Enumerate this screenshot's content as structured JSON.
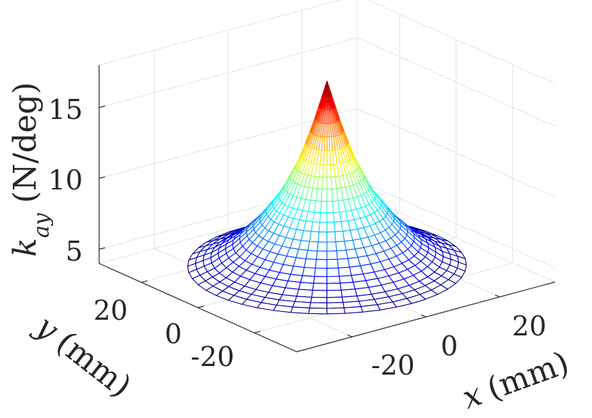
{
  "chart_data": {
    "type": "surface",
    "surface_style": "mesh",
    "colormap": [
      "#00008f",
      "#0000ff",
      "#00ffff",
      "#ffff00",
      "#ff0000",
      "#800000"
    ],
    "title": "",
    "xlabel": "x (mm)",
    "ylabel": "y (mm)",
    "zlabel": "k_ay (N/deg)",
    "xlabel_parts": {
      "symbol": "x",
      "unit": "(mm)"
    },
    "ylabel_parts": {
      "symbol": "y",
      "unit": "(mm)"
    },
    "zlabel_parts": {
      "symbol": "k",
      "subscript": "ay",
      "unit": "(N/deg)"
    },
    "x_ticks": [
      "-20",
      "0",
      "20"
    ],
    "y_ticks": [
      "-20",
      "0",
      "20"
    ],
    "z_ticks": [
      "5",
      "10",
      "15"
    ],
    "xlim": [
      -35,
      35
    ],
    "ylim": [
      -35,
      35
    ],
    "zlim": [
      4,
      18
    ],
    "grid": true,
    "domain": "disc",
    "domain_radius_mm": 30,
    "peak": {
      "x": 0,
      "y": 0,
      "z": 17.5
    },
    "edge_value": 4.5,
    "radial_profile": [
      {
        "r": 0,
        "z": 17.5
      },
      {
        "r": 3,
        "z": 14.5
      },
      {
        "r": 6,
        "z": 12.0
      },
      {
        "r": 10,
        "z": 9.6
      },
      {
        "r": 15,
        "z": 7.6
      },
      {
        "r": 20,
        "z": 6.1
      },
      {
        "r": 25,
        "z": 5.1
      },
      {
        "r": 30,
        "z": 4.5
      }
    ],
    "mesh_rings": 24,
    "mesh_spokes": 48
  }
}
